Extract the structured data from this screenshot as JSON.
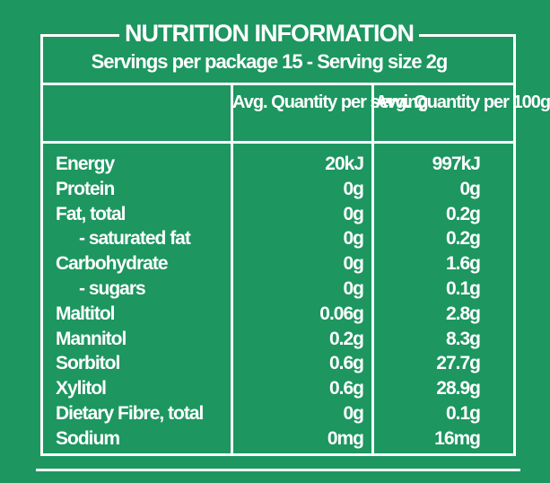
{
  "panel": {
    "title": "NUTRITION INFORMATION",
    "subtitle": "Servings per package 15 - Serving size 2g"
  },
  "table": {
    "header": [
      "Avg. Quantity per serving",
      "Avg. Quantity per 100g"
    ],
    "rows": [
      [
        "Energy",
        "20kJ",
        "997kJ"
      ],
      [
        "Protein",
        "0g",
        "0g"
      ],
      [
        "Fat, total",
        "0g",
        "0.2g"
      ],
      [
        "- saturated fat",
        "0g",
        "0.2g"
      ],
      [
        "Carbohydrate",
        "0g",
        "1.6g"
      ],
      [
        "- sugars",
        "0g",
        "0.1g"
      ],
      [
        "Maltitol",
        "0.06g",
        "2.8g"
      ],
      [
        "Mannitol",
        "0.2g",
        "8.3g"
      ],
      [
        "Sorbitol",
        "0.6g",
        "27.7g"
      ],
      [
        "Xylitol",
        "0.6g",
        "28.9g"
      ],
      [
        "Dietary Fibre, total",
        "0g",
        "0.1g"
      ],
      [
        "Sodium",
        "0mg",
        "16mg"
      ]
    ]
  }
}
